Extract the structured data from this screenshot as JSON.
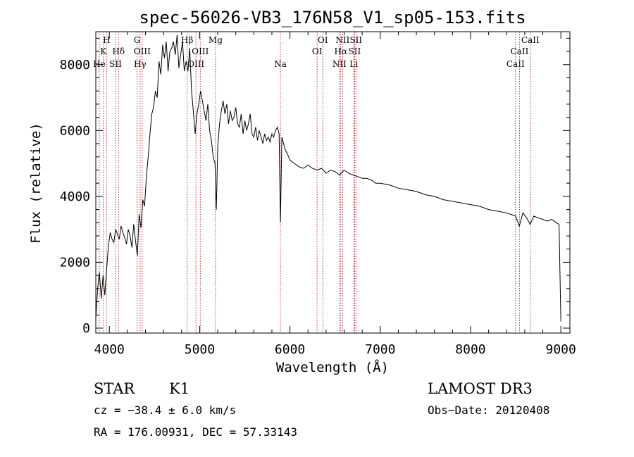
{
  "chart_data": {
    "type": "line",
    "title": "spec-56026-VB3_176N58_V1_sp05-153.fits",
    "xlabel": "Wavelength (Å)",
    "ylabel": "Flux (relative)",
    "xlim": [
      3850,
      9100
    ],
    "ylim": [
      -150,
      9000
    ],
    "x_ticks": [
      4000,
      5000,
      6000,
      7000,
      8000,
      9000
    ],
    "x_tick_labels": [
      "4000",
      "5000",
      "6000",
      "7000",
      "8000",
      "9000"
    ],
    "y_ticks": [
      0,
      2000,
      4000,
      6000,
      8000
    ],
    "y_tick_labels": [
      "0",
      "2000",
      "4000",
      "6000",
      "8000"
    ],
    "spectral_lines": [
      {
        "label": "He",
        "wavelength": 3888.6,
        "row": 3
      },
      {
        "label": "K",
        "wavelength": 3933.7,
        "row": 2
      },
      {
        "label": "H",
        "wavelength": 3968.5,
        "row": 1
      },
      {
        "label": "SII",
        "wavelength": 4068.6,
        "row": 3
      },
      {
        "label": "Hδ",
        "wavelength": 4101.7,
        "row": 2
      },
      {
        "label": "G",
        "wavelength": 4307.9,
        "row": 1
      },
      {
        "label": "Hγ",
        "wavelength": 4340.5,
        "row": 3
      },
      {
        "label": "OIII",
        "wavelength": 4363.2,
        "row": 2
      },
      {
        "label": "Hβ",
        "wavelength": 4861.3,
        "row": 1
      },
      {
        "label": "OIII",
        "wavelength": 4958.9,
        "row": 3
      },
      {
        "label": "OIII",
        "wavelength": 5006.8,
        "row": 2
      },
      {
        "label": "Mg",
        "wavelength": 5175.3,
        "row": 1
      },
      {
        "label": "Na",
        "wavelength": 5894.0,
        "row": 3
      },
      {
        "label": "OI",
        "wavelength": 6300.3,
        "row": 2
      },
      {
        "label": "OI",
        "wavelength": 6363.8,
        "row": 1
      },
      {
        "label": "NII",
        "wavelength": 6548.1,
        "row": 3
      },
      {
        "label": "Hα",
        "wavelength": 6562.8,
        "row": 2
      },
      {
        "label": "NII",
        "wavelength": 6583.5,
        "row": 1
      },
      {
        "label": "Li",
        "wavelength": 6707.8,
        "row": 3
      },
      {
        "label": "SII",
        "wavelength": 6716.4,
        "row": 2
      },
      {
        "label": "SII",
        "wavelength": 6730.8,
        "row": 1
      },
      {
        "label": "CaII",
        "wavelength": 8498.0,
        "row": 3
      },
      {
        "label": "CaII",
        "wavelength": 8542.1,
        "row": 2
      },
      {
        "label": "CaII",
        "wavelength": 8662.1,
        "row": 1
      }
    ],
    "series": [
      {
        "name": "flux",
        "x": [
          3850,
          3870,
          3890,
          3910,
          3930,
          3950,
          3970,
          3990,
          4010,
          4030,
          4050,
          4070,
          4090,
          4110,
          4130,
          4150,
          4170,
          4190,
          4210,
          4230,
          4250,
          4270,
          4290,
          4310,
          4330,
          4350,
          4370,
          4390,
          4410,
          4430,
          4450,
          4470,
          4490,
          4510,
          4530,
          4550,
          4570,
          4590,
          4610,
          4630,
          4650,
          4670,
          4690,
          4710,
          4730,
          4750,
          4770,
          4790,
          4810,
          4830,
          4850,
          4870,
          4890,
          4910,
          4930,
          4950,
          4970,
          4990,
          5010,
          5030,
          5050,
          5070,
          5090,
          5110,
          5130,
          5150,
          5170,
          5185,
          5200,
          5220,
          5240,
          5260,
          5280,
          5300,
          5320,
          5340,
          5360,
          5380,
          5400,
          5420,
          5440,
          5460,
          5480,
          5500,
          5520,
          5540,
          5560,
          5580,
          5600,
          5620,
          5640,
          5660,
          5680,
          5700,
          5720,
          5740,
          5760,
          5780,
          5800,
          5820,
          5840,
          5860,
          5880,
          5895,
          5910,
          5930,
          5950,
          5970,
          6000,
          6050,
          6100,
          6150,
          6200,
          6250,
          6300,
          6350,
          6400,
          6450,
          6500,
          6550,
          6600,
          6650,
          6700,
          6750,
          6800,
          6850,
          6900,
          6950,
          7000,
          7100,
          7200,
          7300,
          7400,
          7500,
          7600,
          7700,
          7800,
          7900,
          8000,
          8100,
          8200,
          8300,
          8400,
          8450,
          8500,
          8540,
          8580,
          8620,
          8660,
          8700,
          8750,
          8800,
          8850,
          8900,
          8950,
          8980,
          9000
        ],
        "values": [
          300,
          1200,
          1700,
          900,
          1600,
          1000,
          1800,
          2500,
          2900,
          2700,
          2600,
          3000,
          2850,
          2700,
          3100,
          2900,
          2750,
          2550,
          3000,
          2800,
          2450,
          3150,
          2650,
          2200,
          3450,
          3050,
          3900,
          3700,
          4600,
          5200,
          5900,
          6500,
          6700,
          7200,
          7000,
          8100,
          7700,
          8600,
          8200,
          8700,
          7800,
          8400,
          8500,
          8700,
          8300,
          8900,
          7900,
          8300,
          8700,
          7800,
          8100,
          7800,
          8500,
          7200,
          6600,
          5900,
          6500,
          6800,
          7200,
          6900,
          6600,
          6300,
          6800,
          6000,
          5700,
          5200,
          5000,
          3600,
          5500,
          6200,
          6600,
          6900,
          6500,
          6800,
          6200,
          6600,
          6300,
          6400,
          6700,
          6200,
          6100,
          6500,
          5900,
          6300,
          6000,
          6200,
          6500,
          5900,
          5800,
          6100,
          5700,
          6000,
          5800,
          5600,
          5900,
          5700,
          5800,
          5650,
          5900,
          5800,
          6000,
          6100,
          5900,
          3200,
          5800,
          5600,
          5400,
          5300,
          5100,
          5000,
          4900,
          4850,
          4950,
          4850,
          4800,
          4850,
          4700,
          4800,
          4750,
          4650,
          4800,
          4700,
          4650,
          4600,
          4550,
          4550,
          4500,
          4400,
          4400,
          4350,
          4250,
          4200,
          4150,
          4050,
          4000,
          3900,
          3850,
          3800,
          3750,
          3700,
          3600,
          3550,
          3500,
          3450,
          3400,
          3100,
          3500,
          3350,
          3150,
          3400,
          3350,
          3300,
          3250,
          3300,
          3200,
          3150,
          200
        ]
      }
    ]
  },
  "info": {
    "object_class": "STAR",
    "subclass": "K1",
    "survey": "LAMOST DR3",
    "redshift": "cz = −38.4 ± 6.0 km/s",
    "obs_date": "Obs−Date: 20120408",
    "coords": "RA = 176.00931, DEC =  57.33143"
  }
}
